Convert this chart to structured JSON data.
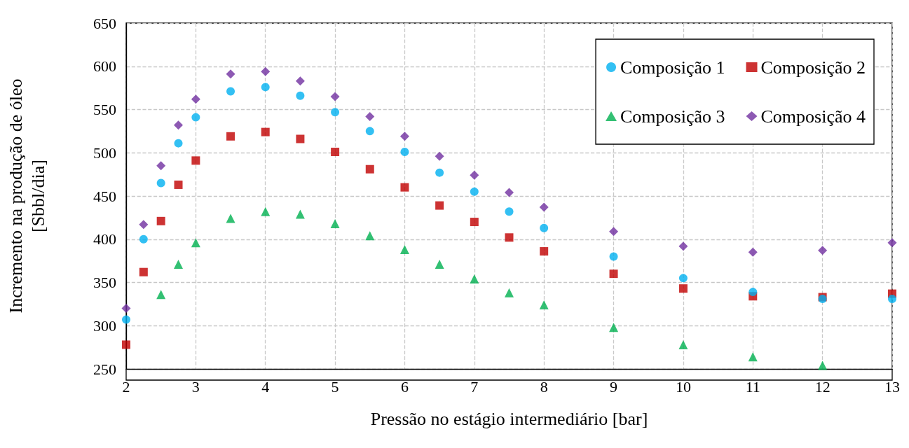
{
  "chart_data": {
    "type": "scatter",
    "xlabel": "Pressão no estágio intermediário [bar]",
    "ylabel": "Incremento na produção de óleo\n[Sbbl/dia]",
    "x": [
      2,
      2.25,
      2.5,
      2.75,
      3,
      3.5,
      4,
      4.5,
      5,
      5.5,
      6,
      6.5,
      7,
      7.5,
      8,
      9,
      10,
      11,
      12,
      13
    ],
    "xlim": [
      2,
      13
    ],
    "xticks": [
      2,
      3,
      4,
      5,
      6,
      7,
      8,
      9,
      10,
      11,
      12,
      13
    ],
    "ylim": [
      250,
      650
    ],
    "yticks": [
      250,
      300,
      350,
      400,
      450,
      500,
      550,
      600,
      650
    ],
    "grid": true,
    "legend": "top right",
    "series": [
      {
        "name": "Composição 1",
        "color": "#00b0f0",
        "marker": "circle",
        "values": [
          307,
          400,
          465,
          511,
          541,
          571,
          576,
          566,
          547,
          525,
          501,
          477,
          455,
          432,
          413,
          380,
          355,
          339,
          331,
          331
        ]
      },
      {
        "name": "Composição 2",
        "color": "#c00000",
        "marker": "square",
        "values": [
          278,
          362,
          421,
          463,
          491,
          519,
          524,
          516,
          501,
          481,
          460,
          439,
          420,
          402,
          386,
          360,
          343,
          334,
          333,
          337
        ]
      },
      {
        "name": "Composição 3",
        "color": "#00b050",
        "marker": "triangle",
        "x": [
          2.5,
          2.75,
          3,
          3.5,
          4,
          4.5,
          5,
          5.5,
          6,
          6.5,
          7,
          7.5,
          8,
          9,
          10,
          11,
          12
        ],
        "values": [
          336,
          371,
          396,
          424,
          432,
          429,
          418,
          404,
          388,
          371,
          354,
          338,
          324,
          298,
          278,
          264,
          254
        ]
      },
      {
        "name": "Composição 4",
        "color": "#7030a0",
        "marker": "diamond",
        "values": [
          320,
          417,
          485,
          532,
          562,
          591,
          594,
          583,
          565,
          542,
          519,
          496,
          474,
          454,
          437,
          409,
          392,
          385,
          387,
          396
        ]
      }
    ]
  }
}
